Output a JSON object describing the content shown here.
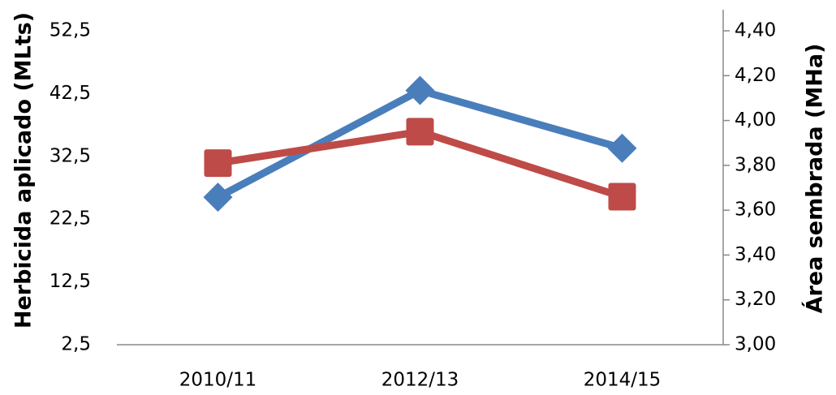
{
  "chart_data": {
    "type": "line",
    "categories": [
      "2010/11",
      "2012/13",
      "2014/15"
    ],
    "series": [
      {
        "color": "#4a7ebb",
        "marker": "diamond",
        "values": [
          26,
          43,
          33.8
        ]
      },
      {
        "color": "#be4b48",
        "marker": "square",
        "axis": "y2",
        "values": [
          3.81,
          3.95,
          3.66
        ]
      }
    ],
    "ylabel": "Herbicida aplicado (MLts)",
    "y2label": "Área sembrada (MHa)",
    "ylim": [
      2.5,
      52.5
    ],
    "yticks": [
      {
        "value": 2.5,
        "label": "2,5"
      },
      {
        "value": 12.5,
        "label": "12,5"
      },
      {
        "value": 22.5,
        "label": "22,5"
      },
      {
        "value": 32.5,
        "label": "32,5"
      },
      {
        "value": 42.5,
        "label": "42,5"
      },
      {
        "value": 52.5,
        "label": "52,5"
      }
    ],
    "y2lim": [
      3.0,
      4.4
    ],
    "y2ticks": [
      {
        "value": 3.0,
        "label": "3,00"
      },
      {
        "value": 3.2,
        "label": "3,20"
      },
      {
        "value": 3.4,
        "label": "3,40"
      },
      {
        "value": 3.6,
        "label": "3,60"
      },
      {
        "value": 3.8,
        "label": "3,80"
      },
      {
        "value": 4.0,
        "label": "4,00"
      },
      {
        "value": 4.2,
        "label": "4,20"
      },
      {
        "value": 4.4,
        "label": "4,40"
      }
    ]
  }
}
